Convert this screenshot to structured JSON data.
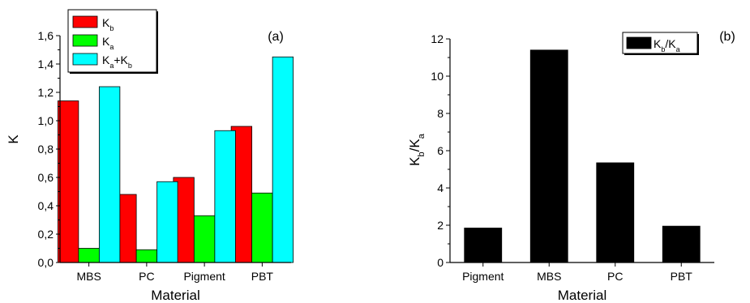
{
  "chart_data": [
    {
      "type": "bar",
      "panel_label": "(a)",
      "categories": [
        "MBS",
        "PC",
        "Pigment",
        "PBT"
      ],
      "series": [
        {
          "name": "K_b",
          "label_main": "K",
          "label_sub": "b",
          "color": "#ff0000",
          "values": [
            1.14,
            0.48,
            0.6,
            0.96
          ]
        },
        {
          "name": "K_a",
          "label_main": "K",
          "label_sub": "a",
          "color": "#00ff00",
          "values": [
            0.1,
            0.09,
            0.33,
            0.49
          ]
        },
        {
          "name": "K_a+K_b",
          "label_parts": [
            [
              "K",
              ""
            ],
            [
              "a",
              "sub"
            ],
            [
              "+K",
              ""
            ],
            [
              "b",
              "sub"
            ]
          ],
          "color": "#00ffff",
          "values": [
            1.24,
            0.57,
            0.93,
            1.45
          ]
        }
      ],
      "xlabel": "Material",
      "ylabel": "K",
      "ylim": [
        0,
        1.6
      ],
      "yticks": [
        0,
        0.2,
        0.4,
        0.6,
        0.8,
        1.0,
        1.2,
        1.4,
        1.6
      ],
      "ytick_labels": [
        "0,0",
        "0,2",
        "0,4",
        "0,6",
        "0,8",
        "1,0",
        "1,2",
        "1,4",
        "1,6"
      ],
      "legend": "top-left",
      "grid": false
    },
    {
      "type": "bar",
      "panel_label": "(b)",
      "categories": [
        "Pigment",
        "MBS",
        "PC",
        "PBT"
      ],
      "series": [
        {
          "name": "K_b/K_a",
          "label_parts": [
            [
              "K",
              ""
            ],
            [
              "b",
              "sub"
            ],
            [
              "/K",
              ""
            ],
            [
              "a",
              "sub"
            ]
          ],
          "color": "#000000",
          "values": [
            1.85,
            11.4,
            5.35,
            1.95
          ]
        }
      ],
      "xlabel": "Material",
      "ylabel_parts": [
        [
          "K",
          ""
        ],
        [
          "b",
          "sub"
        ],
        [
          "/K",
          ""
        ],
        [
          "a",
          "sub"
        ]
      ],
      "ylim": [
        0,
        12
      ],
      "yticks": [
        0,
        2,
        4,
        6,
        8,
        10,
        12
      ],
      "ytick_labels": [
        "0",
        "2",
        "4",
        "6",
        "8",
        "10",
        "12"
      ],
      "legend": "top-right",
      "grid": false
    }
  ]
}
